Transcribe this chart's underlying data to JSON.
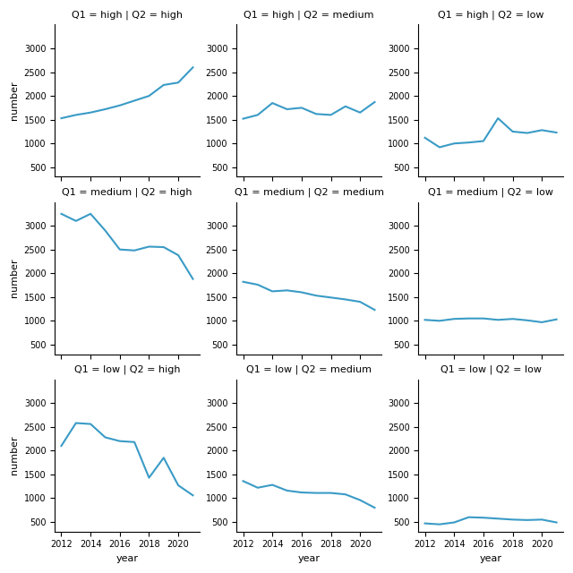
{
  "years": [
    2012,
    2013,
    2014,
    2015,
    2016,
    2017,
    2018,
    2019,
    2020,
    2021
  ],
  "panels": [
    {
      "title": "Q1 = high | Q2 = high",
      "values": [
        1530,
        1600,
        1650,
        1720,
        1800,
        1900,
        2000,
        2230,
        2280,
        2600
      ]
    },
    {
      "title": "Q1 = high | Q2 = medium",
      "values": [
        1520,
        1600,
        1850,
        1720,
        1750,
        1620,
        1600,
        1780,
        1650,
        1870
      ]
    },
    {
      "title": "Q1 = high | Q2 = low",
      "values": [
        1120,
        920,
        1000,
        1020,
        1050,
        1530,
        1250,
        1220,
        1280,
        1230
      ]
    },
    {
      "title": "Q1 = medium | Q2 = high",
      "values": [
        3250,
        3100,
        3250,
        2900,
        2500,
        2480,
        2560,
        2550,
        2380,
        1880
      ]
    },
    {
      "title": "Q1 = medium | Q2 = medium",
      "values": [
        1820,
        1760,
        1620,
        1640,
        1600,
        1530,
        1490,
        1450,
        1400,
        1230
      ]
    },
    {
      "title": "Q1 = medium | Q2 = low",
      "values": [
        1020,
        1000,
        1040,
        1050,
        1050,
        1020,
        1040,
        1010,
        970,
        1030
      ]
    },
    {
      "title": "Q1 = low | Q2 = high",
      "values": [
        2100,
        2580,
        2560,
        2280,
        2200,
        2180,
        1430,
        1850,
        1270,
        1060
      ]
    },
    {
      "title": "Q1 = low | Q2 = medium",
      "values": [
        1360,
        1220,
        1280,
        1160,
        1120,
        1110,
        1110,
        1080,
        960,
        800
      ]
    },
    {
      "title": "Q1 = low | Q2 = low",
      "values": [
        470,
        450,
        490,
        600,
        590,
        570,
        550,
        540,
        550,
        490
      ]
    }
  ],
  "line_color": "#3a9bc6",
  "xlabel": "year",
  "ylabel": "number",
  "x_tick_years": [
    2012,
    2014,
    2016,
    2018,
    2020
  ],
  "y_ticks": [
    500,
    1000,
    1500,
    2000,
    2500,
    3000
  ],
  "ylim": [
    300,
    3500
  ],
  "figsize": [
    6.4,
    6.4
  ],
  "dpi": 100
}
